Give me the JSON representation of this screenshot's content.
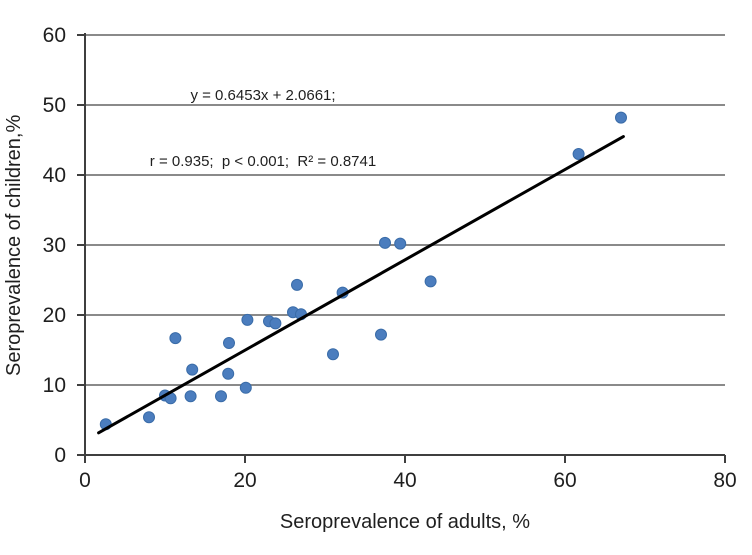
{
  "chart_data": {
    "type": "scatter",
    "title": "",
    "xlabel": "Seroprevalence of adults, %",
    "ylabel": "Seroprevalence of children,%",
    "xlim": [
      0,
      80
    ],
    "ylim": [
      0,
      60
    ],
    "x_ticks": [
      0,
      20,
      40,
      60,
      80
    ],
    "y_ticks": [
      0,
      10,
      20,
      30,
      40,
      50,
      60
    ],
    "grid": "horizontal-only",
    "legend": "none",
    "annotation": [
      "y = 0.6453x + 2.0661;",
      "r = 0.935;  p < 0.001;  R² = 0.8741"
    ],
    "regression": {
      "slope": 0.6453,
      "intercept": 2.0661,
      "r": 0.935,
      "p": "< 0.001",
      "r_squared": 0.8741
    },
    "points": [
      [
        2.6,
        4.4
      ],
      [
        8,
        5.4
      ],
      [
        10,
        8.5
      ],
      [
        10.7,
        8.1
      ],
      [
        11.3,
        16.7
      ],
      [
        13.2,
        8.4
      ],
      [
        13.4,
        12.2
      ],
      [
        17,
        8.4
      ],
      [
        17.9,
        11.6
      ],
      [
        18,
        16
      ],
      [
        20.1,
        9.6
      ],
      [
        20.3,
        19.3
      ],
      [
        23,
        19.1
      ],
      [
        23.8,
        18.8
      ],
      [
        26,
        20.4
      ],
      [
        27,
        20.1
      ],
      [
        26.5,
        24.3
      ],
      [
        31,
        14.4
      ],
      [
        32.2,
        23.2
      ],
      [
        37,
        17.2
      ],
      [
        37.5,
        30.3
      ],
      [
        39.4,
        30.2
      ],
      [
        43.2,
        24.8
      ],
      [
        61.7,
        43.0
      ],
      [
        67,
        48.2
      ]
    ],
    "trendline": {
      "x_start": 1.7,
      "x_end": 67.3
    },
    "colors": {
      "marker": "#4b7dbe",
      "marker_edge": "#3a6ca8",
      "trendline": "#000000",
      "gridline": "#8a8a8a",
      "axis": "#3f3f3f",
      "text": "#1f1f1f"
    }
  }
}
